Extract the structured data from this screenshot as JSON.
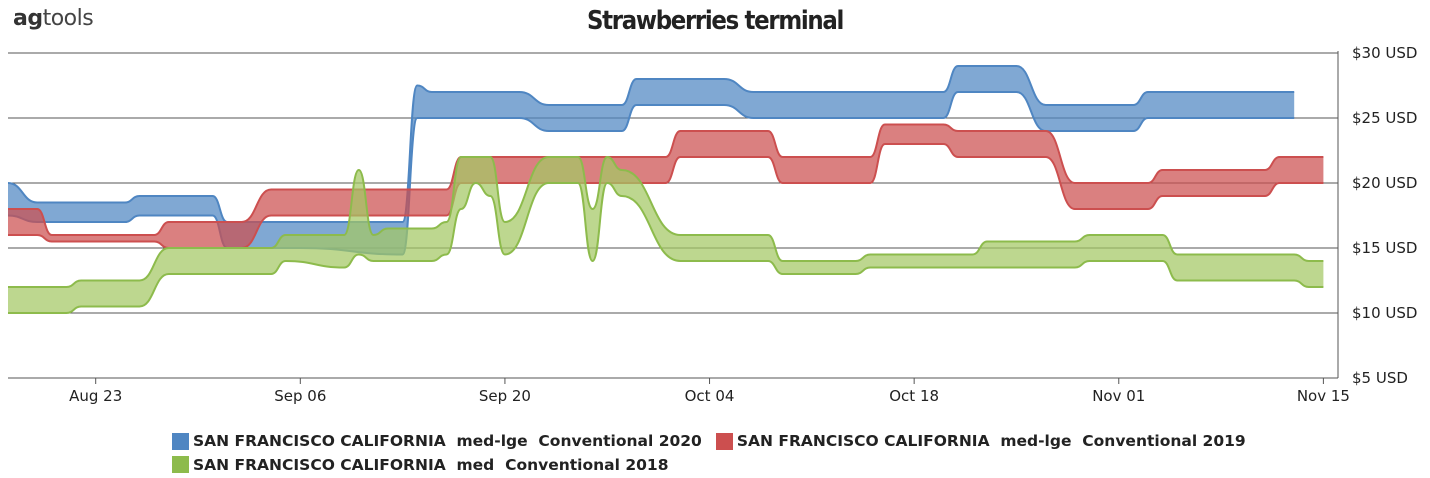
{
  "logo": {
    "text_bold": "ag",
    "text_rest": "tools"
  },
  "chart_data": {
    "type": "area",
    "title": "Strawberries terminal",
    "xlabel": "",
    "ylabel": "",
    "y_unit_suffix": " USD",
    "ylim": [
      5,
      30
    ],
    "yticks": [
      5,
      10,
      15,
      20,
      25,
      30
    ],
    "ytick_labels": [
      "$5 USD",
      "$10 USD",
      "$15 USD",
      "$20 USD",
      "$25 USD",
      "$30 USD"
    ],
    "xticks": [
      "2020-08-23",
      "2020-09-06",
      "2020-09-20",
      "2020-10-04",
      "2020-10-18",
      "2020-11-01",
      "2020-11-15"
    ],
    "xtick_labels": [
      "Aug 23",
      "Sep 06",
      "Sep 20",
      "Oct 04",
      "Oct 18",
      "Nov 01",
      "Nov 15"
    ],
    "grid": "horizontal",
    "legend_position": "bottom",
    "series": [
      {
        "name": "SAN FRANCISCO CALIFORNIA  med-lge  Conventional 2020",
        "color": "#4f86c2",
        "fill": "#4f86c2",
        "points": [
          [
            "2020-08-17",
            20,
            17.5
          ],
          [
            "2020-08-19",
            18.5,
            17
          ],
          [
            "2020-08-25",
            18.5,
            17
          ],
          [
            "2020-08-26",
            19,
            17.5
          ],
          [
            "2020-08-31",
            19,
            17.5
          ],
          [
            "2020-09-01",
            17,
            15
          ],
          [
            "2020-09-05",
            17,
            15
          ],
          [
            "2020-09-06",
            17,
            15
          ],
          [
            "2020-09-13",
            17,
            14.5
          ],
          [
            "2020-09-14",
            27.5,
            25
          ],
          [
            "2020-09-15",
            27,
            25
          ],
          [
            "2020-09-21",
            27,
            25
          ],
          [
            "2020-09-23",
            26,
            24
          ],
          [
            "2020-09-28",
            26,
            24
          ],
          [
            "2020-09-29",
            28,
            26
          ],
          [
            "2020-10-05",
            28,
            26
          ],
          [
            "2020-10-07",
            27,
            25
          ],
          [
            "2020-10-20",
            27,
            25
          ],
          [
            "2020-10-21",
            29,
            27
          ],
          [
            "2020-10-25",
            29,
            27
          ],
          [
            "2020-10-27",
            26,
            24
          ],
          [
            "2020-11-02",
            26,
            24
          ],
          [
            "2020-11-03",
            27,
            25
          ],
          [
            "2020-11-13",
            27,
            25
          ]
        ]
      },
      {
        "name": "SAN FRANCISCO CALIFORNIA  med-lge  Conventional 2019",
        "color": "#cc4f4f",
        "fill": "#cc4f4f",
        "points": [
          [
            "2020-08-17",
            18,
            16
          ],
          [
            "2020-08-19",
            18,
            16
          ],
          [
            "2020-08-20",
            16,
            15.5
          ],
          [
            "2020-08-27",
            16,
            15.5
          ],
          [
            "2020-08-28",
            17,
            15
          ],
          [
            "2020-09-01",
            17,
            15
          ],
          [
            "2020-09-02",
            17,
            15
          ],
          [
            "2020-09-04",
            19.5,
            17.5
          ],
          [
            "2020-09-16",
            19.5,
            17.5
          ],
          [
            "2020-09-17",
            22,
            20
          ],
          [
            "2020-10-01",
            22,
            20
          ],
          [
            "2020-10-02",
            24,
            22
          ],
          [
            "2020-10-08",
            24,
            22
          ],
          [
            "2020-10-09",
            22,
            20
          ],
          [
            "2020-10-15",
            22,
            20
          ],
          [
            "2020-10-16",
            24.5,
            23
          ],
          [
            "2020-10-20",
            24.5,
            23
          ],
          [
            "2020-10-21",
            24,
            22
          ],
          [
            "2020-10-27",
            24,
            22
          ],
          [
            "2020-10-29",
            20,
            18
          ],
          [
            "2020-11-03",
            20,
            18
          ],
          [
            "2020-11-04",
            21,
            19
          ],
          [
            "2020-11-11",
            21,
            19
          ],
          [
            "2020-11-12",
            22,
            20
          ],
          [
            "2020-11-15",
            22,
            20
          ]
        ]
      },
      {
        "name": "SAN FRANCISCO CALIFORNIA  med  Conventional 2018",
        "color": "#8dbb4c",
        "fill": "#a3c864",
        "points": [
          [
            "2020-08-17",
            12,
            10
          ],
          [
            "2020-08-21",
            12,
            10
          ],
          [
            "2020-08-22",
            12.5,
            10.5
          ],
          [
            "2020-08-26",
            12.5,
            10.5
          ],
          [
            "2020-08-28",
            15,
            13
          ],
          [
            "2020-09-04",
            15,
            13
          ],
          [
            "2020-09-05",
            16,
            14
          ],
          [
            "2020-09-09",
            16,
            13.5
          ],
          [
            "2020-09-10",
            21,
            14.5
          ],
          [
            "2020-09-11",
            16,
            14
          ],
          [
            "2020-09-12",
            16.5,
            14
          ],
          [
            "2020-09-15",
            16.5,
            14
          ],
          [
            "2020-09-16",
            17,
            14.5
          ],
          [
            "2020-09-17",
            22,
            18
          ],
          [
            "2020-09-18",
            22,
            20
          ],
          [
            "2020-09-19",
            22,
            19
          ],
          [
            "2020-09-20",
            17,
            14.5
          ],
          [
            "2020-09-23",
            22,
            20
          ],
          [
            "2020-09-25",
            22,
            20
          ],
          [
            "2020-09-26",
            18,
            14
          ],
          [
            "2020-09-27",
            22,
            20
          ],
          [
            "2020-09-28",
            21,
            19
          ],
          [
            "2020-10-02",
            16,
            14
          ],
          [
            "2020-10-06",
            16,
            14
          ],
          [
            "2020-10-08",
            16,
            14
          ],
          [
            "2020-10-09",
            14,
            13
          ],
          [
            "2020-10-14",
            14,
            13
          ],
          [
            "2020-10-15",
            14.5,
            13.5
          ],
          [
            "2020-10-22",
            14.5,
            13.5
          ],
          [
            "2020-10-23",
            15.5,
            13.5
          ],
          [
            "2020-10-29",
            15.5,
            13.5
          ],
          [
            "2020-10-30",
            16,
            14
          ],
          [
            "2020-11-04",
            16,
            14
          ],
          [
            "2020-11-05",
            14.5,
            12.5
          ],
          [
            "2020-11-13",
            14.5,
            12.5
          ],
          [
            "2020-11-14",
            14,
            12
          ],
          [
            "2020-11-15",
            14,
            12
          ]
        ]
      }
    ]
  }
}
